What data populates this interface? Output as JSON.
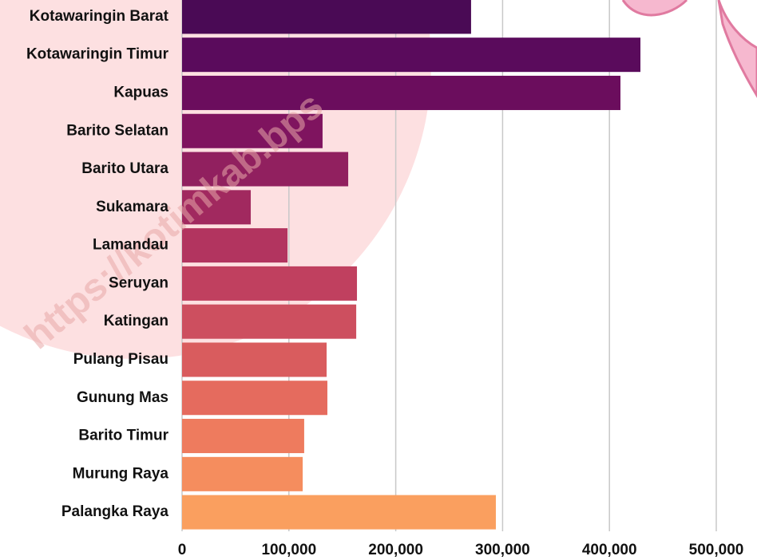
{
  "chart_data": {
    "type": "bar",
    "orientation": "horizontal",
    "watermark": "https://kotimkab.bps",
    "categories": [
      "Kotawaringin Barat",
      "Kotawaringin Timur",
      "Kapuas",
      "Barito Selatan",
      "Barito Utara",
      "Sukamara",
      "Lamandau",
      "Seruyan",
      "Katingan",
      "Pulang Pisau",
      "Gunung Mas",
      "Barito Timur",
      "Murung Raya",
      "Palangka Raya"
    ],
    "values": [
      270500,
      429000,
      410300,
      131500,
      155500,
      64300,
      98700,
      163700,
      163000,
      135300,
      136000,
      114300,
      112900,
      293700
    ],
    "colors": [
      "#4a0a55",
      "#5a0b5c",
      "#6b0d5d",
      "#7f145f",
      "#91205f",
      "#a1295f",
      "#b2345f",
      "#c0405f",
      "#cd4f5f",
      "#d95c5e",
      "#e56b5e",
      "#ee7b5e",
      "#f58d5e",
      "#fa9f5f"
    ],
    "xlim": [
      0,
      500000
    ],
    "xticks": [
      0,
      {
        "value": 100000,
        "label": "100,000"
      },
      {
        "value": 200000,
        "label": "200,000"
      },
      {
        "value": 300000,
        "label": "300,000"
      },
      {
        "value": 400000,
        "label": "400,000"
      },
      {
        "value": 500000,
        "label": "500,000"
      }
    ],
    "grid": true
  }
}
